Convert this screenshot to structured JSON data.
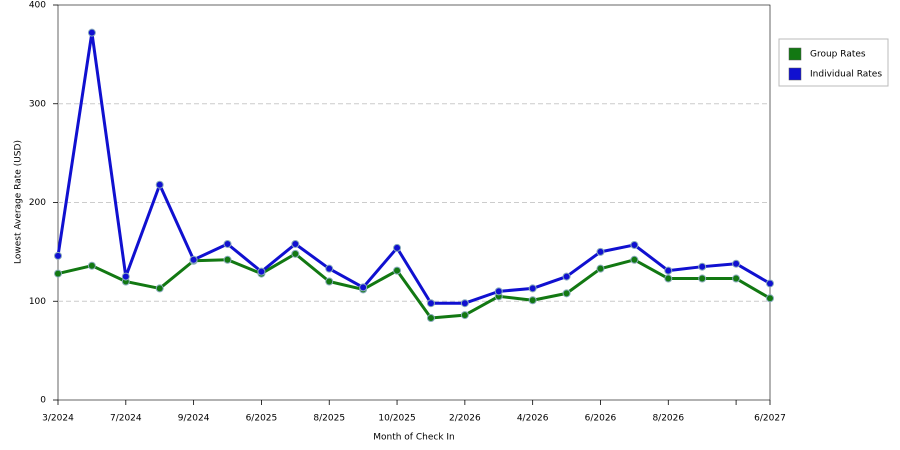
{
  "chart_data": {
    "type": "line",
    "x_label": "Month of Check In",
    "y_label": "Lowest Average Rate (USD)",
    "categories": [
      "3/2024",
      null,
      "7/2024",
      null,
      "9/2024",
      null,
      "6/2025",
      null,
      "8/2025",
      null,
      "10/2025",
      null,
      "2/2026",
      null,
      "4/2026",
      null,
      "6/2026",
      null,
      "8/2026",
      null,
      null,
      "6/2027"
    ],
    "series": [
      {
        "name": "Group Rates",
        "color": "#127812",
        "values": [
          128,
          136,
          120,
          113,
          141,
          142,
          128,
          148,
          120,
          112,
          131,
          83,
          86,
          105,
          101,
          108,
          133,
          142,
          123,
          123,
          123,
          103
        ]
      },
      {
        "name": "Individual Rates",
        "color": "#1010d0",
        "values": [
          146,
          372,
          125,
          218,
          142,
          158,
          130,
          158,
          133,
          114,
          154,
          98,
          98,
          110,
          113,
          125,
          150,
          157,
          131,
          135,
          138,
          118
        ]
      }
    ],
    "ylim": [
      0,
      400
    ],
    "yticks": [
      0,
      100,
      200,
      300,
      400
    ],
    "grid": true,
    "legend": "right"
  }
}
